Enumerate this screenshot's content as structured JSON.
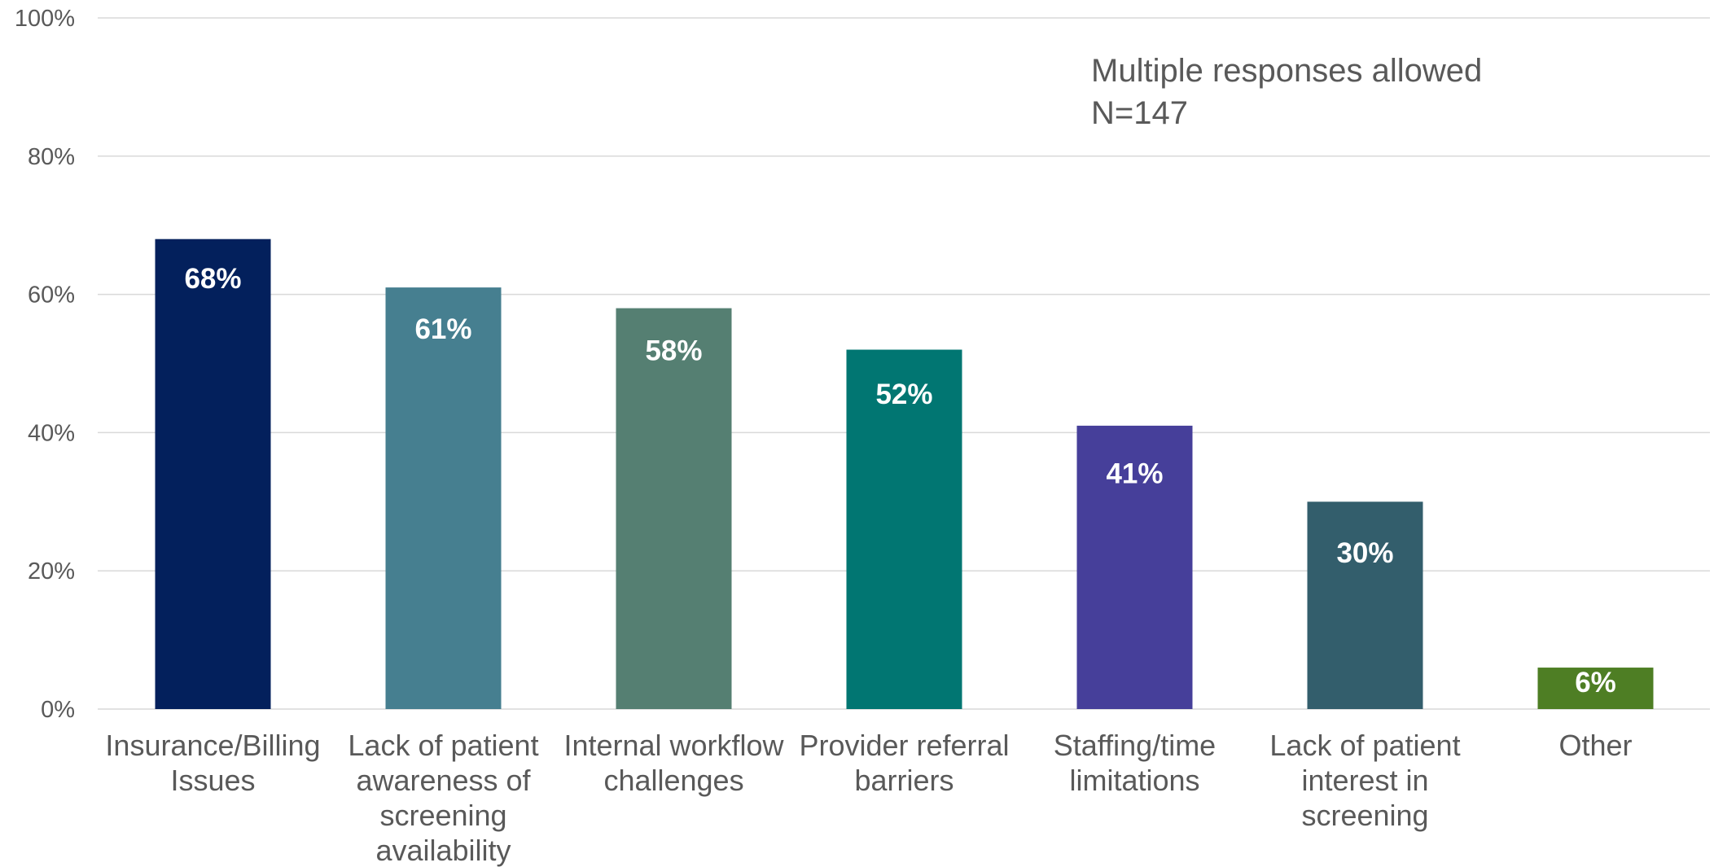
{
  "chart_data": {
    "type": "bar",
    "title": "",
    "xlabel": "",
    "ylabel": "",
    "categories": [
      [
        "Insurance/Billing",
        "Issues"
      ],
      [
        "Lack of patient",
        "awareness of",
        "screening",
        "availability"
      ],
      [
        "Internal workflow",
        "challenges"
      ],
      [
        "Provider referral",
        "barriers"
      ],
      [
        "Staffing/time",
        "limitations"
      ],
      [
        "Lack of patient",
        "interest in",
        "screening"
      ],
      [
        "Other"
      ]
    ],
    "values": [
      68,
      61,
      58,
      52,
      41,
      30,
      6
    ],
    "value_labels": [
      "68%",
      "61%",
      "58%",
      "52%",
      "41%",
      "30%",
      "6%"
    ],
    "bar_colors": [
      "#03205c",
      "#467f90",
      "#557f72",
      "#017672",
      "#463f9a",
      "#335e6c",
      "#4e7e24"
    ],
    "ylim": [
      0,
      100
    ],
    "yticks": [
      0,
      20,
      40,
      60,
      80,
      100
    ],
    "ytick_labels": [
      "0%",
      "20%",
      "40%",
      "60%",
      "80%",
      "100%"
    ],
    "grid": true,
    "legend": "none",
    "annotation": [
      "Multiple responses allowed",
      "N=147"
    ]
  }
}
